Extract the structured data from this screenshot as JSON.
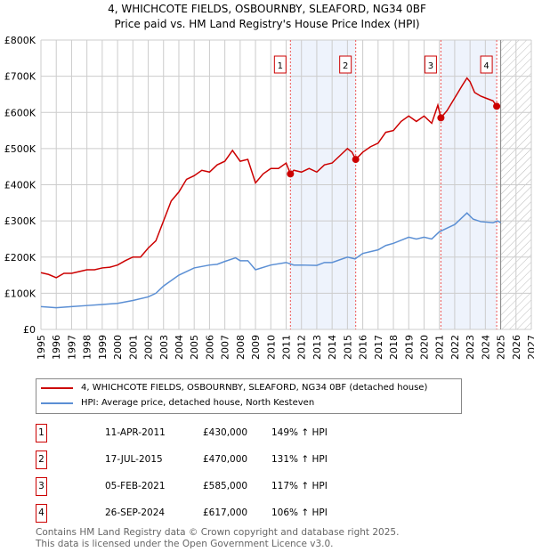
{
  "chart_data": {
    "type": "line",
    "title": "4, WHICHCOTE FIELDS, OSBOURNBY, SLEAFORD, NG34 0BF",
    "subtitle": "Price paid vs. HM Land Registry's House Price Index (HPI)",
    "xlim": [
      1995,
      2027
    ],
    "ylim": [
      0,
      800000
    ],
    "y_ticks": [
      {
        "v": 0,
        "label": "£0"
      },
      {
        "v": 100000,
        "label": "£100K"
      },
      {
        "v": 200000,
        "label": "£200K"
      },
      {
        "v": 300000,
        "label": "£300K"
      },
      {
        "v": 400000,
        "label": "£400K"
      },
      {
        "v": 500000,
        "label": "£500K"
      },
      {
        "v": 600000,
        "label": "£600K"
      },
      {
        "v": 700000,
        "label": "£700K"
      },
      {
        "v": 800000,
        "label": "£800K"
      }
    ],
    "x_ticks": [
      "1995",
      "1996",
      "1997",
      "1998",
      "1999",
      "2000",
      "2001",
      "2002",
      "2003",
      "2004",
      "2005",
      "2006",
      "2007",
      "2008",
      "2009",
      "2010",
      "2011",
      "2012",
      "2013",
      "2014",
      "2015",
      "2016",
      "2017",
      "2018",
      "2019",
      "2020",
      "2021",
      "2022",
      "2023",
      "2024",
      "2025",
      "2026",
      "2027"
    ],
    "grid": true,
    "shaded_periods": [
      [
        2011.28,
        2015.54
      ],
      [
        2021.1,
        2024.74
      ]
    ],
    "forecast_hatch_from": 2025,
    "series": [
      {
        "name": "4, WHICHCOTE FIELDS, OSBOURNBY, SLEAFORD, NG34 0BF (detached house)",
        "color": "#cc0000",
        "x": [
          1995,
          1995.5,
          1996,
          1996.5,
          1997,
          1997.5,
          1998,
          1998.5,
          1999,
          1999.5,
          2000,
          2000.5,
          2001,
          2001.5,
          2002,
          2002.5,
          2003,
          2003.5,
          2004,
          2004.5,
          2005,
          2005.5,
          2006,
          2006.5,
          2007,
          2007.5,
          2008,
          2008.5,
          2009,
          2009.5,
          2010,
          2010.5,
          2011,
          2011.28,
          2011.5,
          2012,
          2012.5,
          2013,
          2013.5,
          2014,
          2014.5,
          2015,
          2015.3,
          2015.54,
          2016,
          2016.5,
          2017,
          2017.5,
          2018,
          2018.5,
          2019,
          2019.5,
          2020,
          2020.5,
          2020.9,
          2021.1,
          2021.5,
          2022,
          2022.5,
          2022.8,
          2023,
          2023.3,
          2023.7,
          2024,
          2024.5,
          2024.74
        ],
        "values": [
          157000,
          152000,
          143000,
          155000,
          155000,
          160000,
          165000,
          165000,
          170000,
          172000,
          178000,
          190000,
          200000,
          200000,
          225000,
          245000,
          300000,
          355000,
          380000,
          415000,
          425000,
          440000,
          435000,
          455000,
          465000,
          495000,
          465000,
          470000,
          405000,
          430000,
          445000,
          445000,
          460000,
          430000,
          440000,
          435000,
          445000,
          435000,
          455000,
          460000,
          480000,
          500000,
          490000,
          470000,
          490000,
          505000,
          515000,
          545000,
          550000,
          575000,
          590000,
          575000,
          590000,
          570000,
          620000,
          585000,
          605000,
          640000,
          675000,
          695000,
          685000,
          655000,
          645000,
          640000,
          632000,
          617000
        ]
      },
      {
        "name": "HPI: Average price, detached house, North Kesteven",
        "color": "#5b8fd4",
        "x": [
          1995,
          1996,
          1997,
          1998,
          1999,
          2000,
          2001,
          2002,
          2002.5,
          2003,
          2004,
          2005,
          2006,
          2006.5,
          2007,
          2007.7,
          2008,
          2008.5,
          2009,
          2010,
          2011,
          2011.5,
          2012,
          2013,
          2013.5,
          2014,
          2015,
          2015.5,
          2016,
          2017,
          2017.5,
          2018,
          2019,
          2019.5,
          2020,
          2020.5,
          2021,
          2022,
          2022.5,
          2022.8,
          2023.2,
          2023.7,
          2024.5,
          2024.8,
          2025
        ],
        "values": [
          63000,
          60000,
          63000,
          66000,
          69000,
          72000,
          80000,
          90000,
          100000,
          120000,
          150000,
          170000,
          178000,
          180000,
          188000,
          198000,
          190000,
          190000,
          165000,
          178000,
          185000,
          178000,
          178000,
          177000,
          185000,
          185000,
          200000,
          195000,
          210000,
          220000,
          232000,
          238000,
          255000,
          250000,
          255000,
          250000,
          270000,
          290000,
          310000,
          322000,
          305000,
          298000,
          295000,
          300000,
          295000
        ]
      }
    ],
    "sales": [
      {
        "n": "1",
        "x": 2011.28,
        "value": 430000,
        "date": "11-APR-2011",
        "price": "£430,000",
        "hpi": "149% ↑ HPI"
      },
      {
        "n": "2",
        "x": 2015.54,
        "value": 470000,
        "date": "17-JUL-2015",
        "price": "£470,000",
        "hpi": "131% ↑ HPI"
      },
      {
        "n": "3",
        "x": 2021.1,
        "value": 585000,
        "date": "05-FEB-2021",
        "price": "£585,000",
        "hpi": "117% ↑ HPI"
      },
      {
        "n": "4",
        "x": 2024.74,
        "value": 617000,
        "date": "26-SEP-2024",
        "price": "£617,000",
        "hpi": "106% ↑ HPI"
      }
    ]
  },
  "legend": {
    "red": "4, WHICHCOTE FIELDS, OSBOURNBY, SLEAFORD, NG34 0BF (detached house)",
    "blue": "HPI: Average price, detached house, North Kesteven"
  },
  "footer": {
    "line1": "Contains HM Land Registry data © Crown copyright and database right 2025.",
    "line2": "This data is licensed under the Open Government Licence v3.0."
  }
}
